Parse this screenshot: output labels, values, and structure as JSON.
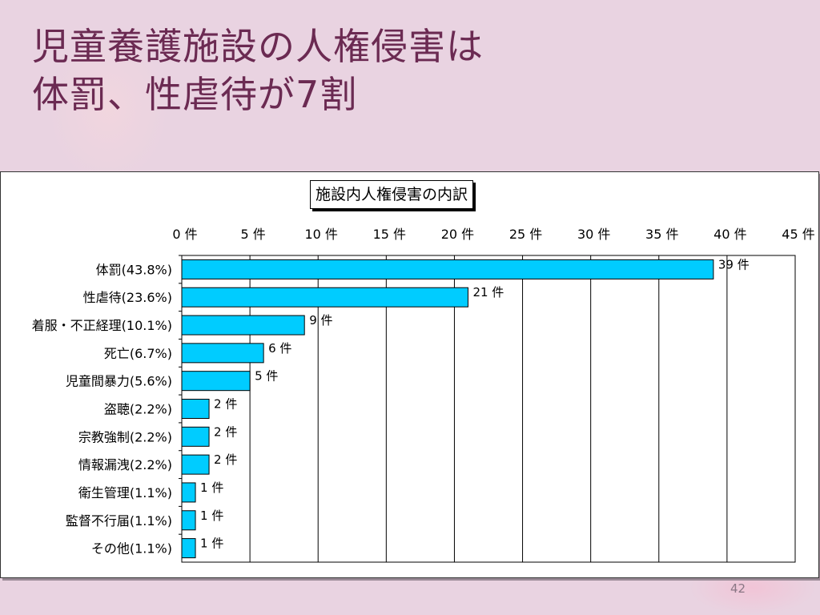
{
  "slide": {
    "title_lines": [
      "児童養護施設の人権侵害は",
      "体罰、性虐待が7割"
    ],
    "page_number": "42"
  },
  "colors": {
    "title": "#6b2a52",
    "bar_fill": "#00ccff",
    "bar_stroke": "#000000",
    "background": "#e9d3e1"
  },
  "chart_data": {
    "type": "bar",
    "orientation": "horizontal",
    "title": "施設内人権侵害の内訳",
    "categories": [
      "体罰(43.8%)",
      "性虐待(23.6%)",
      "着服・不正経理(10.1%)",
      "死亡(6.7%)",
      "児童間暴力(5.6%)",
      "盗聴(2.2%)",
      "宗教強制(2.2%)",
      "情報漏洩(2.2%)",
      "衛生管理(1.1%)",
      "監督不行届(1.1%)",
      "その他(1.1%)"
    ],
    "values": [
      39,
      21,
      9,
      6,
      5,
      2,
      2,
      2,
      1,
      1,
      1
    ],
    "data_labels": [
      "39 件",
      "21 件",
      "9 件",
      "6 件",
      "5 件",
      "2 件",
      "2 件",
      "2 件",
      "1 件",
      "1 件",
      "1 件"
    ],
    "xlim": [
      0,
      45
    ],
    "x_ticks": [
      0,
      5,
      10,
      15,
      20,
      25,
      30,
      35,
      40,
      45
    ],
    "x_tick_labels": [
      "0 件",
      "5 件",
      "10 件",
      "15 件",
      "20 件",
      "25 件",
      "30 件",
      "35 件",
      "40 件",
      "45 件"
    ],
    "x_axis_position": "top",
    "grid": true
  }
}
